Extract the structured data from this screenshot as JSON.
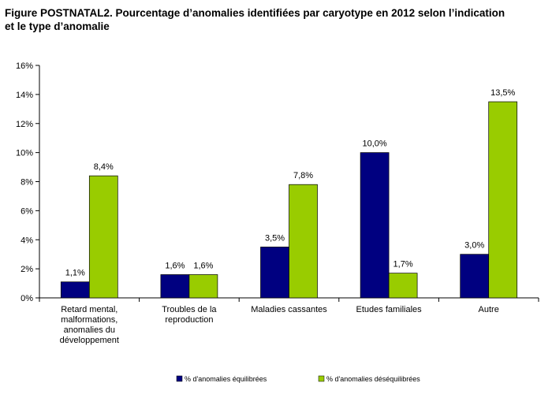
{
  "figure": {
    "title_line1": "Figure POSTNATAL2. Pourcentage d’anomalies identifiées par caryotype en 2012 selon l’indication",
    "title_line2": "et le type d’anomalie"
  },
  "chart_data": {
    "type": "bar",
    "title": "Figure POSTNATAL2. Pourcentage d’anomalies identifiées par caryotype en 2012 selon l’indication et le type d’anomalie",
    "xlabel": "",
    "ylabel": "",
    "ylim": [
      0,
      16
    ],
    "yticks": [
      0,
      2,
      4,
      6,
      8,
      10,
      12,
      14,
      16
    ],
    "ytick_labels": [
      "0%",
      "2%",
      "4%",
      "6%",
      "8%",
      "10%",
      "12%",
      "14%",
      "16%"
    ],
    "grid": false,
    "legend_position": "bottom",
    "categories": [
      [
        "Retard mental,",
        "malformations,",
        "anomalies du",
        "développement"
      ],
      [
        "Troubles de la",
        "reproduction"
      ],
      [
        "Maladies cassantes"
      ],
      [
        "Etudes familiales"
      ],
      [
        "Autre"
      ]
    ],
    "series": [
      {
        "name": "% d'anomalies équilibrées",
        "color": "#000080",
        "values": [
          1.1,
          1.6,
          3.5,
          10.0,
          3.0
        ],
        "labels": [
          "1,1%",
          "1,6%",
          "3,5%",
          "10,0%",
          "3,0%"
        ]
      },
      {
        "name": "% d'anomalies déséquilibrées",
        "color": "#99CC00",
        "values": [
          8.4,
          1.6,
          7.8,
          1.7,
          13.5
        ],
        "labels": [
          "8,4%",
          "1,6%",
          "7,8%",
          "1,7%",
          "13,5%"
        ]
      }
    ]
  }
}
